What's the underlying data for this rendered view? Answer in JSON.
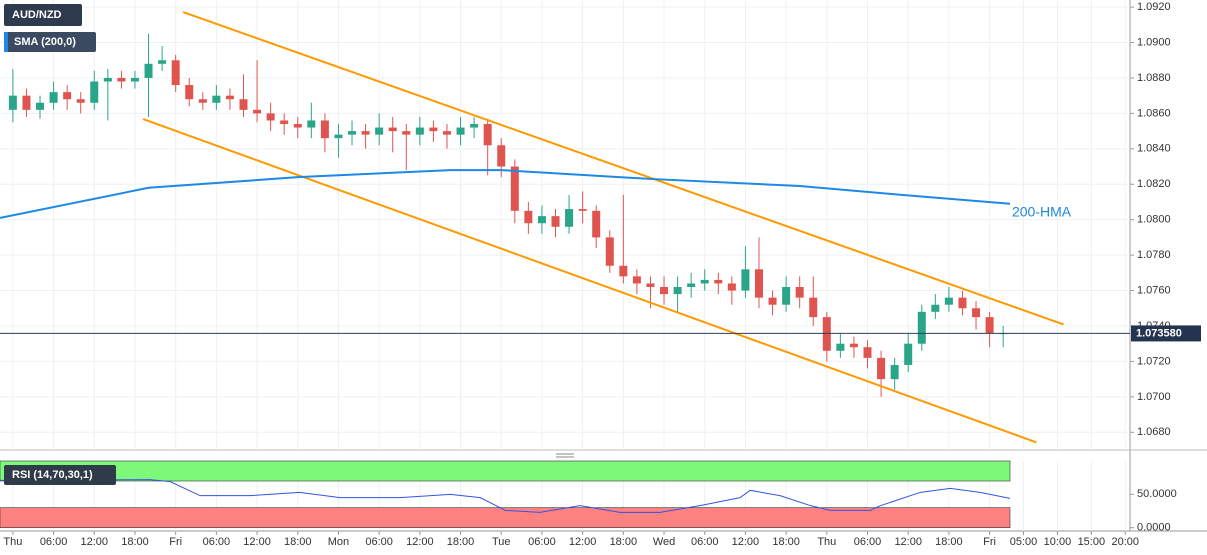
{
  "chart_data": [
    {
      "type": "candlestick",
      "title": "AUD/NZD",
      "indicator_label": "SMA (200,0)",
      "x": [
        0,
        2,
        4,
        6,
        8,
        10,
        12,
        14,
        16,
        18,
        20,
        22,
        24,
        26,
        28,
        30,
        32,
        34,
        36,
        38,
        40,
        42,
        44,
        46,
        48,
        50,
        52,
        54,
        56,
        58,
        60,
        62,
        64,
        66,
        68,
        70,
        72,
        74,
        76,
        78,
        80,
        82,
        84,
        86,
        88,
        90,
        92,
        94,
        96,
        98,
        100,
        102,
        104,
        106,
        108,
        110,
        112,
        114,
        116,
        118,
        120,
        122,
        124,
        126,
        128,
        130,
        132,
        134,
        136,
        138,
        140,
        142,
        144,
        146
      ],
      "open": [
        1.0862,
        1.087,
        1.0862,
        1.0866,
        1.0872,
        1.0868,
        1.0866,
        1.0878,
        1.088,
        1.0878,
        1.088,
        1.0888,
        1.089,
        1.0876,
        1.0868,
        1.0866,
        1.087,
        1.0868,
        1.0862,
        1.086,
        1.0856,
        1.0854,
        1.0852,
        1.0856,
        1.0846,
        1.0848,
        1.085,
        1.0848,
        1.0852,
        1.085,
        1.0848,
        1.0852,
        1.085,
        1.0848,
        1.0852,
        1.0854,
        1.0842,
        1.083,
        1.0805,
        1.0798,
        1.0802,
        1.0796,
        1.0806,
        1.0805,
        1.079,
        1.0774,
        1.0768,
        1.0764,
        1.0762,
        1.0758,
        1.0762,
        1.0764,
        1.0766,
        1.0764,
        1.076,
        1.0772,
        1.0756,
        1.0752,
        1.0762,
        1.0756,
        1.0745,
        1.0726,
        1.073,
        1.0728,
        1.0722,
        1.071,
        1.0718,
        1.073,
        1.0748,
        1.0752,
        1.0756,
        1.075,
        1.0745,
        1.0736
      ],
      "high": [
        1.0885,
        1.0874,
        1.087,
        1.0878,
        1.0876,
        1.0872,
        1.0884,
        1.0885,
        1.0884,
        1.0884,
        1.0905,
        1.0898,
        1.0893,
        1.088,
        1.0872,
        1.0876,
        1.0874,
        1.0882,
        1.089,
        1.0866,
        1.086,
        1.0858,
        1.0866,
        1.086,
        1.0854,
        1.0856,
        1.0854,
        1.086,
        1.0858,
        1.0854,
        1.0858,
        1.0856,
        1.0854,
        1.0858,
        1.0858,
        1.0857,
        1.0846,
        1.0834,
        1.081,
        1.0808,
        1.0806,
        1.0814,
        1.0816,
        1.0808,
        1.0794,
        1.0814,
        1.0772,
        1.0768,
        1.0768,
        1.0768,
        1.077,
        1.0772,
        1.077,
        1.0768,
        1.0785,
        1.079,
        1.076,
        1.0768,
        1.0768,
        1.0768,
        1.0748,
        1.0736,
        1.0734,
        1.0732,
        1.0726,
        1.0722,
        1.0736,
        1.0752,
        1.0758,
        1.0762,
        1.076,
        1.0754,
        1.0748,
        1.074
      ],
      "low": [
        1.0855,
        1.0858,
        1.0857,
        1.0862,
        1.0862,
        1.086,
        1.0862,
        1.0856,
        1.0874,
        1.0874,
        1.0858,
        1.0884,
        1.0872,
        1.0864,
        1.0862,
        1.0862,
        1.0862,
        1.0858,
        1.0855,
        1.085,
        1.0848,
        1.0846,
        1.0846,
        1.0838,
        1.0835,
        1.0842,
        1.084,
        1.0842,
        1.0838,
        1.0828,
        1.0842,
        1.0844,
        1.084,
        1.0842,
        1.0846,
        1.0825,
        1.0824,
        1.0798,
        1.0792,
        1.0792,
        1.079,
        1.0792,
        1.0798,
        1.0784,
        1.077,
        1.0764,
        1.0758,
        1.075,
        1.0752,
        1.0748,
        1.0756,
        1.076,
        1.0758,
        1.0752,
        1.0756,
        1.075,
        1.0746,
        1.0748,
        1.075,
        1.074,
        1.072,
        1.0722,
        1.0722,
        1.0716,
        1.07,
        1.0704,
        1.0714,
        1.0726,
        1.0744,
        1.0748,
        1.0746,
        1.0738,
        1.0728,
        1.0728
      ],
      "close": [
        1.087,
        1.0862,
        1.0866,
        1.0872,
        1.0868,
        1.0866,
        1.0878,
        1.088,
        1.0878,
        1.088,
        1.0888,
        1.089,
        1.0876,
        1.0868,
        1.0866,
        1.087,
        1.0868,
        1.0862,
        1.086,
        1.0856,
        1.0854,
        1.0852,
        1.0856,
        1.0846,
        1.0848,
        1.085,
        1.0848,
        1.0852,
        1.085,
        1.0848,
        1.0852,
        1.085,
        1.0848,
        1.0852,
        1.0854,
        1.0842,
        1.083,
        1.0805,
        1.0798,
        1.0802,
        1.0796,
        1.0806,
        1.0805,
        1.079,
        1.0774,
        1.0768,
        1.0764,
        1.0762,
        1.0758,
        1.0762,
        1.0764,
        1.0766,
        1.0764,
        1.076,
        1.0772,
        1.0756,
        1.0752,
        1.0762,
        1.0756,
        1.0745,
        1.0726,
        1.073,
        1.0728,
        1.0722,
        1.071,
        1.0718,
        1.073,
        1.0748,
        1.0752,
        1.0756,
        1.075,
        1.0745,
        1.0736,
        1.0736
      ],
      "up_color": "#2aa58a",
      "down_color": "#e0544f",
      "xlim": [
        -1.9,
        164.7
      ],
      "ylim": [
        1.067,
        1.0924
      ],
      "xticks": [
        {
          "value": 0,
          "label": "Thu"
        },
        {
          "value": 6,
          "label": "06:00"
        },
        {
          "value": 12,
          "label": "12:00"
        },
        {
          "value": 18,
          "label": "18:00"
        },
        {
          "value": 24,
          "label": "Fri"
        },
        {
          "value": 30,
          "label": "06:00"
        },
        {
          "value": 36,
          "label": "12:00"
        },
        {
          "value": 42,
          "label": "18:00"
        },
        {
          "value": 48,
          "label": "Mon"
        },
        {
          "value": 54,
          "label": "06:00"
        },
        {
          "value": 60,
          "label": "12:00"
        },
        {
          "value": 66,
          "label": "18:00"
        },
        {
          "value": 72,
          "label": "Tue"
        },
        {
          "value": 78,
          "label": "06:00"
        },
        {
          "value": 84,
          "label": "12:00"
        },
        {
          "value": 90,
          "label": "18:00"
        },
        {
          "value": 96,
          "label": "Wed"
        },
        {
          "value": 102,
          "label": "06:00"
        },
        {
          "value": 108,
          "label": "12:00"
        },
        {
          "value": 114,
          "label": "18:00"
        },
        {
          "value": 120,
          "label": "Thu"
        },
        {
          "value": 126,
          "label": "06:00"
        },
        {
          "value": 132,
          "label": "12:00"
        },
        {
          "value": 138,
          "label": "18:00"
        },
        {
          "value": 144,
          "label": "Fri"
        },
        {
          "value": 149,
          "label": "05:00"
        },
        {
          "value": 154,
          "label": "10:00"
        },
        {
          "value": 159,
          "label": "15:00"
        },
        {
          "value": 164,
          "label": "20:00"
        }
      ],
      "yticks": [
        {
          "value": 1.092,
          "label": "1.0920"
        },
        {
          "value": 1.09,
          "label": "1.0900"
        },
        {
          "value": 1.088,
          "label": "1.0880"
        },
        {
          "value": 1.086,
          "label": "1.0860"
        },
        {
          "value": 1.084,
          "label": "1.0840"
        },
        {
          "value": 1.082,
          "label": "1.0820"
        },
        {
          "value": 1.08,
          "label": "1.0800"
        },
        {
          "value": 1.078,
          "label": "1.0780"
        },
        {
          "value": 1.076,
          "label": "1.0760"
        },
        {
          "value": 1.074,
          "label": "1.0740"
        },
        {
          "value": 1.072,
          "label": "1.0720"
        },
        {
          "value": 1.07,
          "label": "1.0700"
        },
        {
          "value": 1.068,
          "label": "1.0680"
        }
      ],
      "grid": true,
      "lines": [
        {
          "name": "200-HMA",
          "color": "#1e88e5",
          "x": [
            -1.9,
            20,
            42,
            64.5,
            72,
            94,
            116,
            131,
            147
          ],
          "values": [
            1.0801,
            1.0818,
            1.0824,
            1.0828,
            1.0828,
            1.0823,
            1.0819,
            1.0814,
            1.0809
          ]
        }
      ],
      "channel": {
        "color": "#ff9900",
        "lines": [
          {
            "x": [
              25.1,
              154.9
            ],
            "values": [
              1.09172,
              1.07409
            ]
          },
          {
            "x": [
              19.2,
              150.9
            ],
            "values": [
              1.08568,
              1.06743
            ]
          }
        ]
      },
      "last_price": {
        "value": 1.07358,
        "label": "1.073580"
      }
    },
    {
      "type": "line",
      "title": "RSI (14,70,30,1)",
      "x": [
        -1.9,
        20.2,
        23.2,
        27.6,
        35,
        42.3,
        48.2,
        57.1,
        64.5,
        68.9,
        72.6,
        77.7,
        83.6,
        89.5,
        95.4,
        101.3,
        107.2,
        108.7,
        113.1,
        117.6,
        120.5,
        126.4,
        127.9,
        133.8,
        138.2,
        142.6,
        147
      ],
      "series": [
        {
          "color": "#3355dd",
          "values": [
            71,
            72,
            69,
            48,
            48,
            53,
            45,
            45,
            50,
            45,
            26,
            23,
            33,
            23,
            23,
            33,
            45,
            56,
            48,
            33,
            26,
            26,
            33,
            53,
            59,
            53,
            44
          ]
        }
      ],
      "ylim": [
        -5,
        100
      ],
      "yticks": [
        {
          "value": 50,
          "label": "50.0000"
        },
        {
          "value": 0,
          "label": "0.0000"
        }
      ],
      "bands": [
        {
          "range": [
            70,
            100
          ],
          "color": "#7ef87a"
        },
        {
          "range": [
            0,
            30
          ],
          "color": "#ff8282"
        }
      ]
    }
  ]
}
